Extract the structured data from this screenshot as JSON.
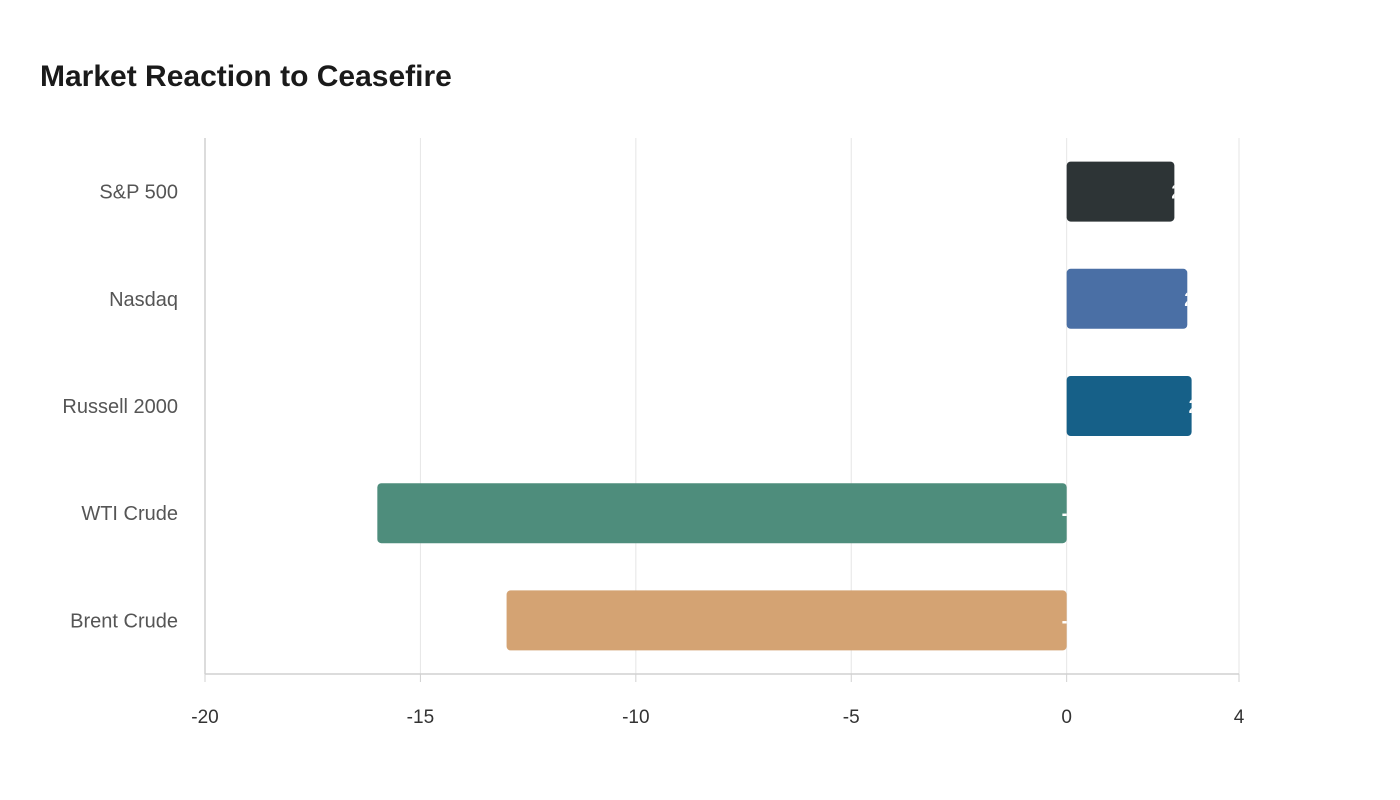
{
  "chart_data": {
    "type": "bar",
    "orientation": "horizontal",
    "title": "Market Reaction to Ceasefire",
    "xlabel": "",
    "ylabel": "",
    "categories": [
      "S&P 500",
      "Nasdaq",
      "Russell 2000",
      "WTI Crude",
      "Brent Crude"
    ],
    "values": [
      2.5,
      2.8,
      2.9,
      -16,
      -13
    ],
    "colors": [
      "#2d3436",
      "#4a6fa5",
      "#166088",
      "#4e8d7c",
      "#d4a373"
    ],
    "xlim": [
      -20,
      4
    ],
    "xticks": [
      -20,
      -15,
      -10,
      -5,
      0,
      4
    ],
    "grid": true,
    "legend": "none"
  }
}
